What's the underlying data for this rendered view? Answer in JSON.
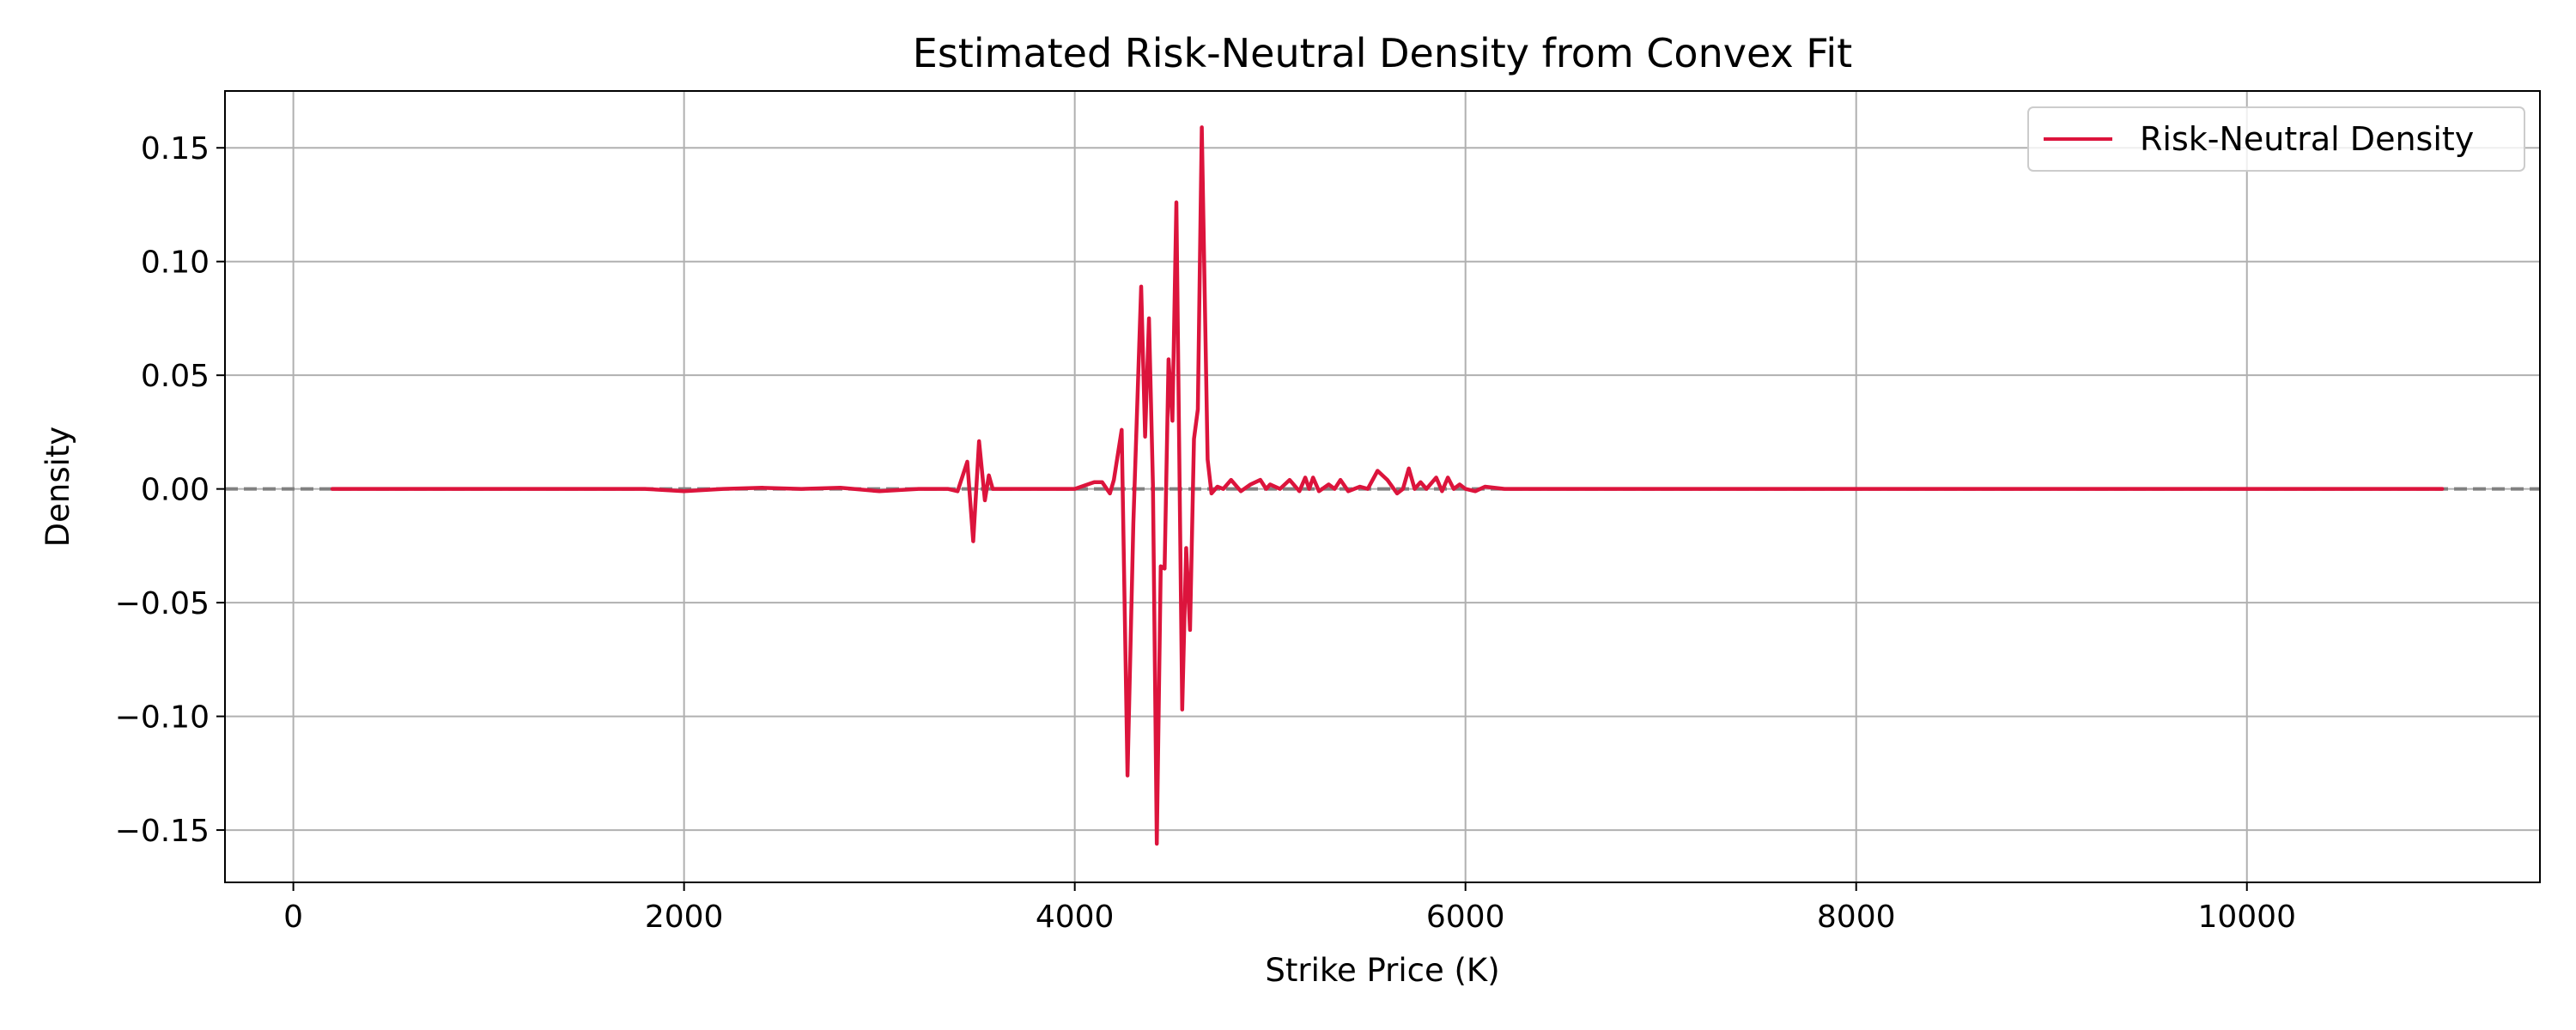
{
  "chart_data": {
    "type": "line",
    "title": "Estimated Risk-Neutral Density from Convex Fit",
    "xlabel": "Strike Price (K)",
    "ylabel": "Density",
    "xlim": [
      -350,
      11500
    ],
    "ylim": [
      -0.173,
      0.175
    ],
    "x_ticks": [
      {
        "value": 0,
        "label": "0"
      },
      {
        "value": 2000,
        "label": "2000"
      },
      {
        "value": 4000,
        "label": "4000"
      },
      {
        "value": 6000,
        "label": "6000"
      },
      {
        "value": 8000,
        "label": "8000"
      },
      {
        "value": 10000,
        "label": "10000"
      }
    ],
    "y_ticks": [
      {
        "value": -0.15,
        "label": "−0.15"
      },
      {
        "value": -0.1,
        "label": "−0.10"
      },
      {
        "value": -0.05,
        "label": "−0.05"
      },
      {
        "value": 0.0,
        "label": "0.00"
      },
      {
        "value": 0.05,
        "label": "0.05"
      },
      {
        "value": 0.1,
        "label": "0.10"
      },
      {
        "value": 0.15,
        "label": "0.15"
      }
    ],
    "grid": true,
    "legend_position": "top-right",
    "reference_line": {
      "y": 0,
      "style": "dashed",
      "color": "#808080"
    },
    "series": [
      {
        "name": "Risk-Neutral Density",
        "color": "#DC143C",
        "x": [
          200,
          1000,
          1800,
          2000,
          2200,
          2400,
          2600,
          2800,
          3000,
          3200,
          3350,
          3400,
          3450,
          3480,
          3510,
          3540,
          3560,
          3580,
          3600,
          3700,
          4000,
          4100,
          4140,
          4180,
          4200,
          4240,
          4270,
          4300,
          4340,
          4360,
          4380,
          4400,
          4420,
          4440,
          4460,
          4480,
          4500,
          4520,
          4550,
          4570,
          4590,
          4610,
          4630,
          4650,
          4680,
          4700,
          4730,
          4760,
          4800,
          4850,
          4900,
          4950,
          4980,
          5000,
          5050,
          5100,
          5150,
          5180,
          5200,
          5220,
          5250,
          5300,
          5330,
          5360,
          5400,
          5430,
          5460,
          5500,
          5550,
          5600,
          5650,
          5680,
          5710,
          5740,
          5770,
          5800,
          5850,
          5880,
          5910,
          5940,
          5970,
          6000,
          6050,
          6100,
          6200,
          6300,
          7000,
          8000,
          9000,
          10000,
          11000
        ],
        "y": [
          0,
          0,
          0,
          -0.001,
          0,
          0.0005,
          0,
          0.0005,
          -0.001,
          0,
          0,
          -0.001,
          0.012,
          -0.023,
          0.021,
          -0.005,
          0.006,
          0,
          0,
          0,
          0,
          0.003,
          0.003,
          -0.002,
          0.004,
          0.026,
          -0.126,
          -0.015,
          0.089,
          0.023,
          0.075,
          0.002,
          -0.156,
          -0.034,
          -0.035,
          0.057,
          0.03,
          0.126,
          -0.097,
          -0.026,
          -0.062,
          0.022,
          0.035,
          0.159,
          0.013,
          -0.002,
          0.001,
          0,
          0.004,
          -0.001,
          0.002,
          0.004,
          0,
          0.002,
          0,
          0.004,
          -0.001,
          0.005,
          0,
          0.005,
          -0.001,
          0.002,
          0,
          0.004,
          -0.001,
          0,
          0.001,
          0,
          0.008,
          0.004,
          -0.002,
          0,
          0.009,
          0,
          0.003,
          0,
          0.005,
          -0.001,
          0.005,
          0,
          0.002,
          0,
          -0.001,
          0.001,
          0,
          0,
          0,
          0,
          0,
          0,
          0
        ]
      }
    ]
  }
}
